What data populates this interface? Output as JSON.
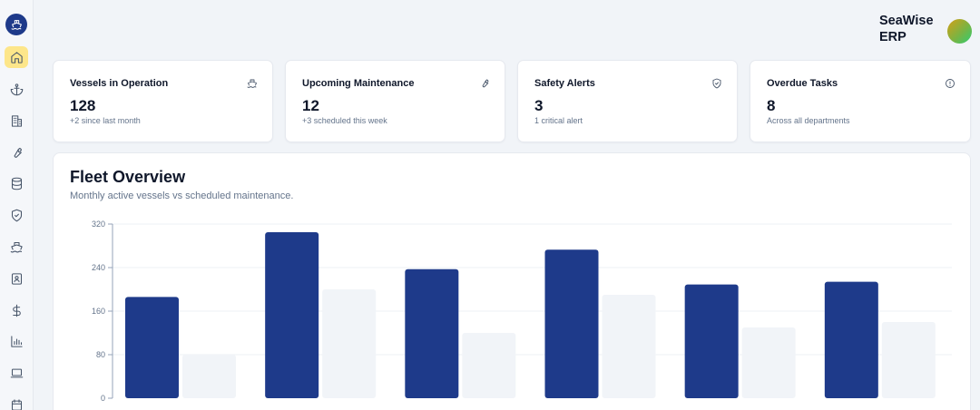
{
  "app": {
    "brand_line1": "SeaWise",
    "brand_line2": "ERP"
  },
  "sidebar": {
    "items": [
      {
        "icon": "home-icon",
        "active": true
      },
      {
        "icon": "anchor-icon",
        "active": false
      },
      {
        "icon": "building-icon",
        "active": false
      },
      {
        "icon": "wrench-icon",
        "active": false
      },
      {
        "icon": "database-icon",
        "active": false
      },
      {
        "icon": "shield-icon",
        "active": false
      },
      {
        "icon": "ship-icon",
        "active": false
      },
      {
        "icon": "contact-book-icon",
        "active": false
      },
      {
        "icon": "dollar-icon",
        "active": false
      },
      {
        "icon": "bar-chart-icon",
        "active": false
      },
      {
        "icon": "laptop-icon",
        "active": false
      },
      {
        "icon": "calendar-icon",
        "active": false
      }
    ]
  },
  "cards": [
    {
      "title": "Vessels in Operation",
      "value": "128",
      "sub": "+2 since last month",
      "icon": "ship-icon"
    },
    {
      "title": "Upcoming Maintenance",
      "value": "12",
      "sub": "+3 scheduled this week",
      "icon": "wrench-icon"
    },
    {
      "title": "Safety Alerts",
      "value": "3",
      "sub": "1 critical alert",
      "icon": "shield-icon"
    },
    {
      "title": "Overdue Tasks",
      "value": "8",
      "sub": "Across all departments",
      "icon": "alert-circle-icon"
    }
  ],
  "fleet": {
    "title": "Fleet Overview",
    "subtitle": "Monthly active vessels vs scheduled maintenance."
  },
  "colors": {
    "primary": "#1e3a8a",
    "secondary": "#f1f4f8",
    "accent_active": "#fde68a"
  },
  "chart_data": {
    "type": "bar",
    "categories": [
      "",
      "",
      "",
      "",
      "",
      ""
    ],
    "series": [
      {
        "values": [
          186,
          305,
          237,
          273,
          209,
          214
        ],
        "color": "#1e3a8a"
      },
      {
        "values": [
          80,
          200,
          120,
          190,
          130,
          140
        ],
        "color": "#f1f4f8"
      }
    ],
    "yticks": [
      0,
      80,
      160,
      240,
      320
    ],
    "ylim": [
      0,
      320
    ],
    "grid": true
  }
}
